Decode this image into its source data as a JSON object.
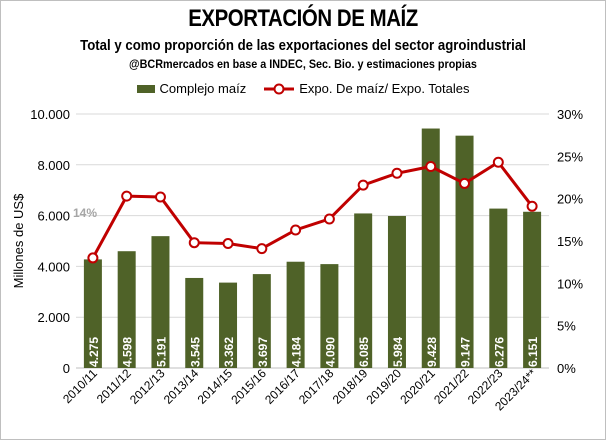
{
  "chart_data": {
    "type": "bar+line",
    "title": "EXPORTACIÓN DE MAÍZ",
    "subtitle": "Total y como proporción de las exportaciones del sector agroindustrial",
    "source": "@BCRmercados en base a INDEC, Sec. Bio. y estimaciones propias",
    "ylabel": "Millones de US$",
    "ylim": [
      0,
      10000
    ],
    "y2lim": [
      0,
      30
    ],
    "yticks": [
      "0",
      "2.000",
      "4.000",
      "6.000",
      "8.000",
      "10.000"
    ],
    "y2ticks": [
      "0%",
      "5%",
      "10%",
      "15%",
      "20%",
      "25%",
      "30%"
    ],
    "categories": [
      "2010/11",
      "2011/12",
      "2012/13",
      "2013/14",
      "2014/15",
      "2015/16",
      "2016/17",
      "2017/18",
      "2018/19",
      "2019/20",
      "2020/21",
      "2021/22",
      "2022/23",
      "2023/24**"
    ],
    "series": [
      {
        "name": "Complejo maíz",
        "type": "bar",
        "color": "#4f6228",
        "values": [
          4275,
          4598,
          5191,
          3545,
          3362,
          3697,
          4184,
          4090,
          6085,
          5984,
          9428,
          9147,
          6276,
          6151
        ],
        "labels": [
          "4.275",
          "4.598",
          "5.191",
          "3.545",
          "3.362",
          "3.697",
          "4.184",
          "4.090",
          "6.085",
          "5.984",
          "9.428",
          "9.147",
          "6.276",
          "6.151"
        ]
      },
      {
        "name": "Expo. De maíz/ Expo. Totales",
        "type": "line",
        "color": "#c00000",
        "axis": "right",
        "values": [
          13.0,
          20.3,
          20.2,
          14.8,
          14.7,
          14.1,
          16.3,
          17.6,
          21.6,
          23.0,
          23.8,
          21.8,
          24.3,
          19.1
        ]
      }
    ],
    "annotations": [
      "14%"
    ],
    "grid": true,
    "legend": "top"
  }
}
